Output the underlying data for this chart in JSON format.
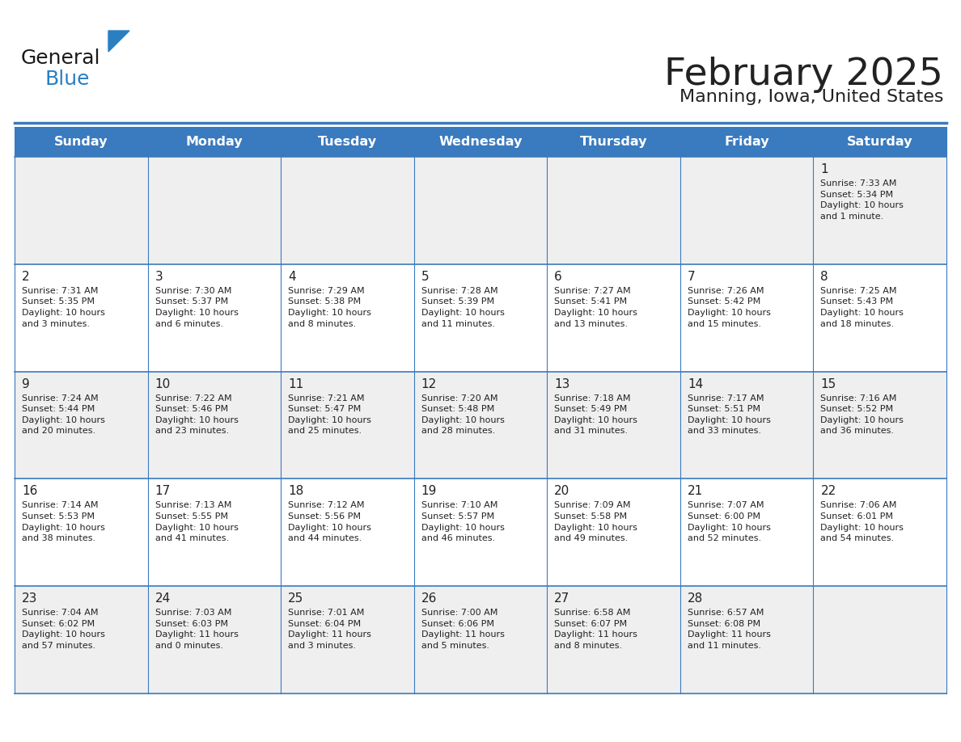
{
  "title": "February 2025",
  "subtitle": "Manning, Iowa, United States",
  "header_color": "#3a7abf",
  "header_text_color": "#ffffff",
  "days_of_week": [
    "Sunday",
    "Monday",
    "Tuesday",
    "Wednesday",
    "Thursday",
    "Friday",
    "Saturday"
  ],
  "cell_bg_even": "#efefef",
  "cell_bg_odd": "#ffffff",
  "grid_line_color": "#3a7abf",
  "text_color": "#222222",
  "day_num_color": "#222222",
  "logo_general_color": "#1a1a1a",
  "logo_blue_color": "#2a7fc1",
  "logo_triangle_color": "#2a7fc1",
  "calendar": [
    [
      null,
      null,
      null,
      null,
      null,
      null,
      {
        "day": 1,
        "sunrise": "7:33 AM",
        "sunset": "5:34 PM",
        "daylight": "10 hours\nand 1 minute."
      }
    ],
    [
      {
        "day": 2,
        "sunrise": "7:31 AM",
        "sunset": "5:35 PM",
        "daylight": "10 hours\nand 3 minutes."
      },
      {
        "day": 3,
        "sunrise": "7:30 AM",
        "sunset": "5:37 PM",
        "daylight": "10 hours\nand 6 minutes."
      },
      {
        "day": 4,
        "sunrise": "7:29 AM",
        "sunset": "5:38 PM",
        "daylight": "10 hours\nand 8 minutes."
      },
      {
        "day": 5,
        "sunrise": "7:28 AM",
        "sunset": "5:39 PM",
        "daylight": "10 hours\nand 11 minutes."
      },
      {
        "day": 6,
        "sunrise": "7:27 AM",
        "sunset": "5:41 PM",
        "daylight": "10 hours\nand 13 minutes."
      },
      {
        "day": 7,
        "sunrise": "7:26 AM",
        "sunset": "5:42 PM",
        "daylight": "10 hours\nand 15 minutes."
      },
      {
        "day": 8,
        "sunrise": "7:25 AM",
        "sunset": "5:43 PM",
        "daylight": "10 hours\nand 18 minutes."
      }
    ],
    [
      {
        "day": 9,
        "sunrise": "7:24 AM",
        "sunset": "5:44 PM",
        "daylight": "10 hours\nand 20 minutes."
      },
      {
        "day": 10,
        "sunrise": "7:22 AM",
        "sunset": "5:46 PM",
        "daylight": "10 hours\nand 23 minutes."
      },
      {
        "day": 11,
        "sunrise": "7:21 AM",
        "sunset": "5:47 PM",
        "daylight": "10 hours\nand 25 minutes."
      },
      {
        "day": 12,
        "sunrise": "7:20 AM",
        "sunset": "5:48 PM",
        "daylight": "10 hours\nand 28 minutes."
      },
      {
        "day": 13,
        "sunrise": "7:18 AM",
        "sunset": "5:49 PM",
        "daylight": "10 hours\nand 31 minutes."
      },
      {
        "day": 14,
        "sunrise": "7:17 AM",
        "sunset": "5:51 PM",
        "daylight": "10 hours\nand 33 minutes."
      },
      {
        "day": 15,
        "sunrise": "7:16 AM",
        "sunset": "5:52 PM",
        "daylight": "10 hours\nand 36 minutes."
      }
    ],
    [
      {
        "day": 16,
        "sunrise": "7:14 AM",
        "sunset": "5:53 PM",
        "daylight": "10 hours\nand 38 minutes."
      },
      {
        "day": 17,
        "sunrise": "7:13 AM",
        "sunset": "5:55 PM",
        "daylight": "10 hours\nand 41 minutes."
      },
      {
        "day": 18,
        "sunrise": "7:12 AM",
        "sunset": "5:56 PM",
        "daylight": "10 hours\nand 44 minutes."
      },
      {
        "day": 19,
        "sunrise": "7:10 AM",
        "sunset": "5:57 PM",
        "daylight": "10 hours\nand 46 minutes."
      },
      {
        "day": 20,
        "sunrise": "7:09 AM",
        "sunset": "5:58 PM",
        "daylight": "10 hours\nand 49 minutes."
      },
      {
        "day": 21,
        "sunrise": "7:07 AM",
        "sunset": "6:00 PM",
        "daylight": "10 hours\nand 52 minutes."
      },
      {
        "day": 22,
        "sunrise": "7:06 AM",
        "sunset": "6:01 PM",
        "daylight": "10 hours\nand 54 minutes."
      }
    ],
    [
      {
        "day": 23,
        "sunrise": "7:04 AM",
        "sunset": "6:02 PM",
        "daylight": "10 hours\nand 57 minutes."
      },
      {
        "day": 24,
        "sunrise": "7:03 AM",
        "sunset": "6:03 PM",
        "daylight": "11 hours\nand 0 minutes."
      },
      {
        "day": 25,
        "sunrise": "7:01 AM",
        "sunset": "6:04 PM",
        "daylight": "11 hours\nand 3 minutes."
      },
      {
        "day": 26,
        "sunrise": "7:00 AM",
        "sunset": "6:06 PM",
        "daylight": "11 hours\nand 5 minutes."
      },
      {
        "day": 27,
        "sunrise": "6:58 AM",
        "sunset": "6:07 PM",
        "daylight": "11 hours\nand 8 minutes."
      },
      {
        "day": 28,
        "sunrise": "6:57 AM",
        "sunset": "6:08 PM",
        "daylight": "11 hours\nand 11 minutes."
      },
      null
    ]
  ]
}
